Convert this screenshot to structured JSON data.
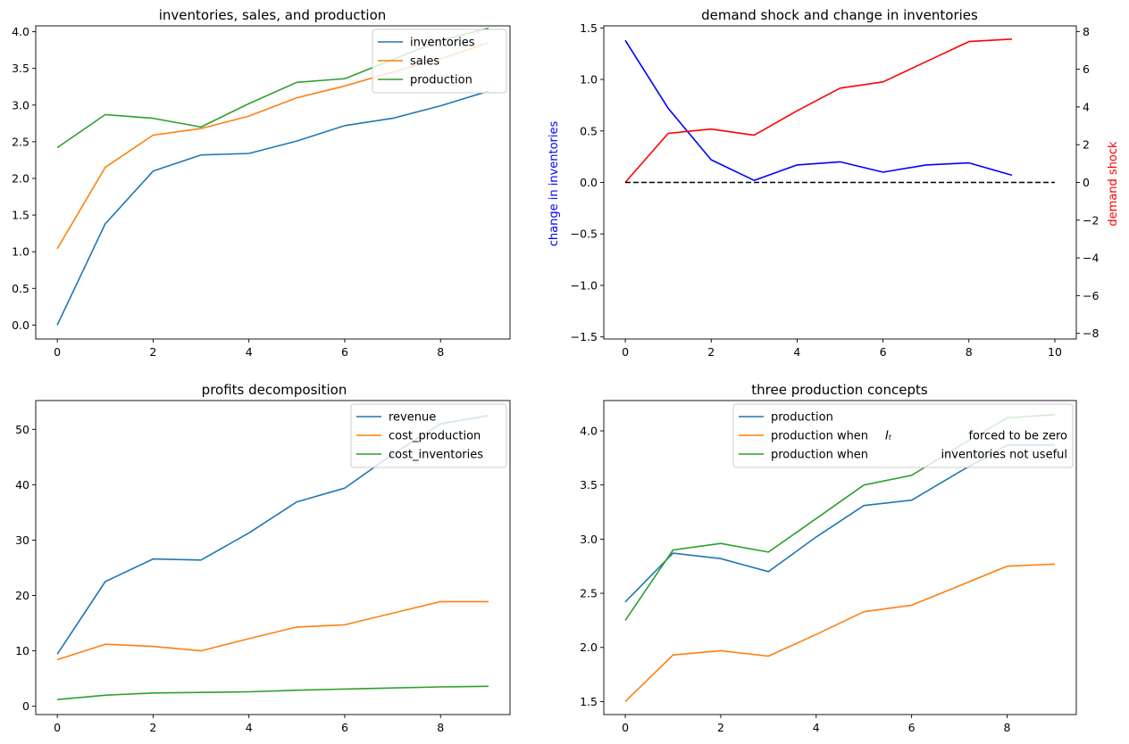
{
  "chart_data": [
    {
      "type": "line",
      "title": "inventories, sales, and production",
      "x": [
        0,
        1,
        2,
        3,
        4,
        5,
        6,
        7,
        8,
        9
      ],
      "xticks": [
        0,
        2,
        4,
        6,
        8
      ],
      "yticks": [
        "0.0",
        "0.5",
        "1.0",
        "1.5",
        "2.0",
        "2.5",
        "3.0",
        "3.5",
        "4.0"
      ],
      "xlim": [
        -0.45,
        9.45
      ],
      "ylim": [
        -0.19,
        4.08
      ],
      "legend": "top-right",
      "series": [
        {
          "name": "inventories",
          "color": "#1f77b4",
          "values": [
            0.0,
            1.38,
            2.1,
            2.32,
            2.34,
            2.51,
            2.72,
            2.82,
            2.99,
            3.19
          ]
        },
        {
          "name": "sales",
          "color": "#ff7f0e",
          "values": [
            1.04,
            2.15,
            2.59,
            2.68,
            2.85,
            3.1,
            3.26,
            3.45,
            3.63,
            3.85
          ]
        },
        {
          "name": "production",
          "color": "#2ca02c",
          "values": [
            2.42,
            2.87,
            2.82,
            2.7,
            3.02,
            3.31,
            3.36,
            3.62,
            3.88,
            4.05
          ]
        }
      ]
    },
    {
      "type": "line",
      "title": "demand shock and change in inventories",
      "ylabel": "change in inventories",
      "ylabel_color": "#0000ff",
      "y2label": "demand shock",
      "y2label_color": "#ff0000",
      "xticks": [
        0,
        2,
        4,
        6,
        8,
        10
      ],
      "yticks": [
        "−1.5",
        "−1.0",
        "−0.5",
        "0.0",
        "0.5",
        "1.0",
        "1.5"
      ],
      "y2ticks": [
        "−8",
        "−6",
        "−4",
        "−2",
        "0",
        "2",
        "4",
        "6",
        "8"
      ],
      "xlim": [
        -0.5,
        10.5
      ],
      "ylim": [
        -1.52,
        1.52
      ],
      "y2lim": [
        -8.3,
        8.3
      ],
      "series": [
        {
          "name": "change in inventories",
          "axis": "left",
          "color": "#0000ff",
          "x": [
            0,
            1,
            2,
            3,
            4,
            5,
            6,
            7,
            8,
            9
          ],
          "values": [
            1.38,
            0.72,
            0.22,
            0.02,
            0.17,
            0.2,
            0.1,
            0.17,
            0.19,
            0.07
          ]
        },
        {
          "name": "demand shock",
          "axis": "right",
          "color": "#ff0000",
          "x": [
            0,
            1,
            2,
            3,
            4,
            5,
            6,
            7,
            8,
            9
          ],
          "values": [
            0,
            2.6,
            2.83,
            2.5,
            3.8,
            5.0,
            5.33,
            6.4,
            7.47,
            7.6
          ]
        },
        {
          "name": "zero line",
          "axis": "left",
          "color": "#000000",
          "dashed": true,
          "x": [
            0,
            10
          ],
          "values": [
            0,
            0
          ]
        }
      ]
    },
    {
      "type": "line",
      "title": "profits decomposition",
      "x": [
        0,
        1,
        2,
        3,
        4,
        5,
        6,
        7,
        8,
        9
      ],
      "xticks": [
        0,
        2,
        4,
        6,
        8
      ],
      "yticks": [
        "0",
        "10",
        "20",
        "30",
        "40",
        "50"
      ],
      "xlim": [
        -0.45,
        9.45
      ],
      "ylim": [
        -1.5,
        55.2
      ],
      "legend": "top-right",
      "series": [
        {
          "name": "revenue",
          "color": "#1f77b4",
          "values": [
            9.4,
            22.5,
            26.6,
            26.4,
            31.3,
            36.9,
            39.4,
            45.5,
            51.0,
            52.5
          ]
        },
        {
          "name": "cost_production",
          "color": "#ff7f0e",
          "values": [
            8.4,
            11.2,
            10.8,
            10.0,
            12.2,
            14.3,
            14.7,
            16.8,
            18.9,
            18.9
          ]
        },
        {
          "name": "cost_inventories",
          "color": "#2ca02c",
          "values": [
            1.2,
            2.0,
            2.4,
            2.5,
            2.6,
            2.9,
            3.1,
            3.3,
            3.5,
            3.6
          ]
        }
      ]
    },
    {
      "type": "line",
      "title": "three production concepts",
      "x": [
        0,
        1,
        2,
        3,
        4,
        5,
        6,
        7,
        8,
        9
      ],
      "xticks": [
        0,
        2,
        4,
        6,
        8
      ],
      "yticks": [
        "1.5",
        "2.0",
        "2.5",
        "3.0",
        "3.5",
        "4.0"
      ],
      "xlim": [
        -0.45,
        9.45
      ],
      "ylim": [
        1.38,
        4.28
      ],
      "legend": "top-right",
      "series": [
        {
          "name": "production",
          "color": "#1f77b4",
          "values": [
            2.42,
            2.87,
            2.82,
            2.7,
            3.02,
            3.31,
            3.36,
            3.62,
            3.87,
            3.87
          ]
        },
        {
          "name": "production when",
          "math": "I_t",
          "suffix": "forced to be zero",
          "color": "#ff7f0e",
          "values": [
            1.5,
            1.93,
            1.97,
            1.92,
            2.12,
            2.33,
            2.39,
            2.57,
            2.75,
            2.77
          ]
        },
        {
          "name": "production when",
          "suffix": "inventories not useful",
          "color": "#2ca02c",
          "values": [
            2.25,
            2.9,
            2.96,
            2.88,
            3.19,
            3.5,
            3.59,
            3.86,
            4.12,
            4.15
          ]
        }
      ]
    }
  ]
}
